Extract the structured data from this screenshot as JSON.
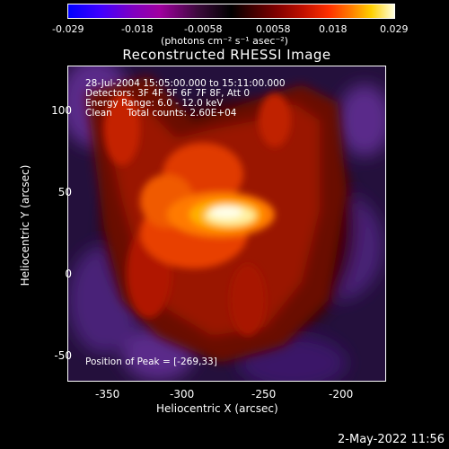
{
  "colorbar": {
    "ticks": [
      "-0.029",
      "-0.018",
      "-0.0058",
      "0.0058",
      "0.018",
      "0.029"
    ],
    "unit": "(photons cm⁻² s⁻¹ asec⁻²)"
  },
  "title": "Reconstructed RHESSI Image",
  "info": {
    "line1": "28-Jul-2004 15:05:00.000 to 15:11:00.000",
    "line2": "Detectors: 3F 4F 5F 6F 7F 8F, Att 0",
    "line3": "Energy Range: 6.0 - 12.0 keV",
    "line4": "Clean     Total counts: 2.60E+04",
    "peak": "Position of Peak = [-269,33]"
  },
  "axes": {
    "xlabel": "Heliocentric X (arcsec)",
    "ylabel": "Heliocentric Y (arcsec)",
    "xticks": [
      "-350",
      "-300",
      "-250",
      "-200"
    ],
    "yticks": [
      "100",
      "50",
      "0",
      "-50"
    ]
  },
  "timestamp": "2-May-2022 11:56"
}
